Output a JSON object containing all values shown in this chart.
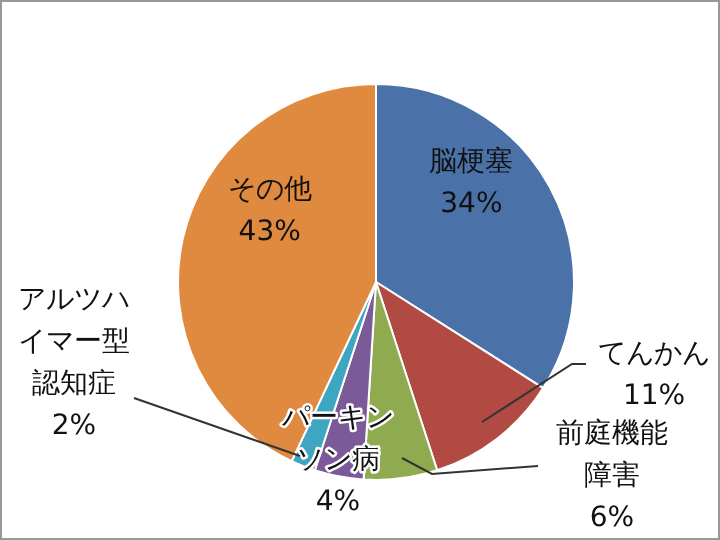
{
  "chart_data": {
    "type": "pie",
    "categories": [
      "脳梗塞",
      "てんかん",
      "前庭機能障害",
      "パーキンソン病",
      "アルツハイマー型認知症",
      "その他"
    ],
    "values": [
      34,
      11,
      6,
      4,
      2,
      43
    ],
    "value_labels": [
      "34%",
      "11%",
      "6%",
      "4%",
      "2%",
      "43%"
    ],
    "colors": [
      "#4a72a8",
      "#b24a44",
      "#8faa4f",
      "#7c5a9a",
      "#3ea6c0",
      "#e08a40"
    ],
    "legend": false
  }
}
